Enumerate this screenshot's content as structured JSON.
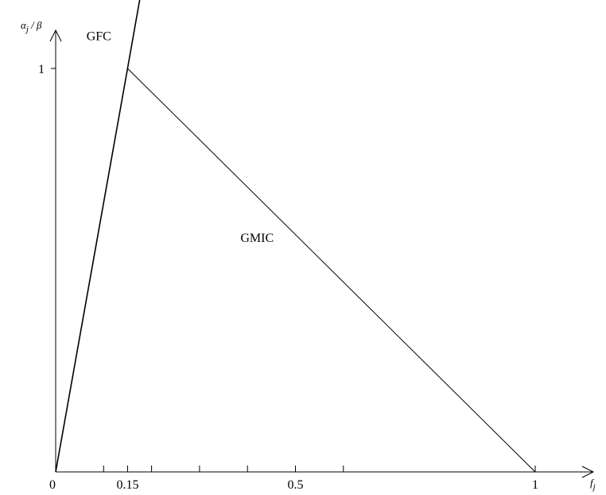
{
  "chart_data": {
    "type": "line",
    "title": "",
    "xlabel": "f_j",
    "ylabel": "α_j / β",
    "xlim": [
      0,
      1.1
    ],
    "ylim": [
      0,
      1.2
    ],
    "grid": false,
    "legend": "none",
    "x_tick_positions": [
      0.1,
      0.15,
      0.2,
      0.3,
      0.4,
      0.5,
      0.6,
      1
    ],
    "x_tick_labels": [
      {
        "x": 0,
        "label": "0"
      },
      {
        "x": 0.15,
        "label": "0.15"
      },
      {
        "x": 0.5,
        "label": "0.5"
      },
      {
        "x": 1,
        "label": "1"
      }
    ],
    "y_tick_labels": [
      {
        "y": 1,
        "label": "1"
      }
    ],
    "series": [
      {
        "label": "GFC",
        "points": [
          [
            0,
            0
          ],
          [
            0.15,
            1
          ],
          [
            0.1775,
            1.185
          ]
        ]
      },
      {
        "label": "GMIC",
        "points": [
          [
            0.15,
            1
          ],
          [
            1,
            0
          ]
        ]
      }
    ],
    "curve_labels": [
      {
        "text": "GFC",
        "x": 0.09,
        "y": 1.07
      },
      {
        "text": "GMIC",
        "x": 0.42,
        "y": 0.57
      }
    ],
    "colors": {
      "line": "#000000",
      "background": "#ffffff"
    }
  }
}
